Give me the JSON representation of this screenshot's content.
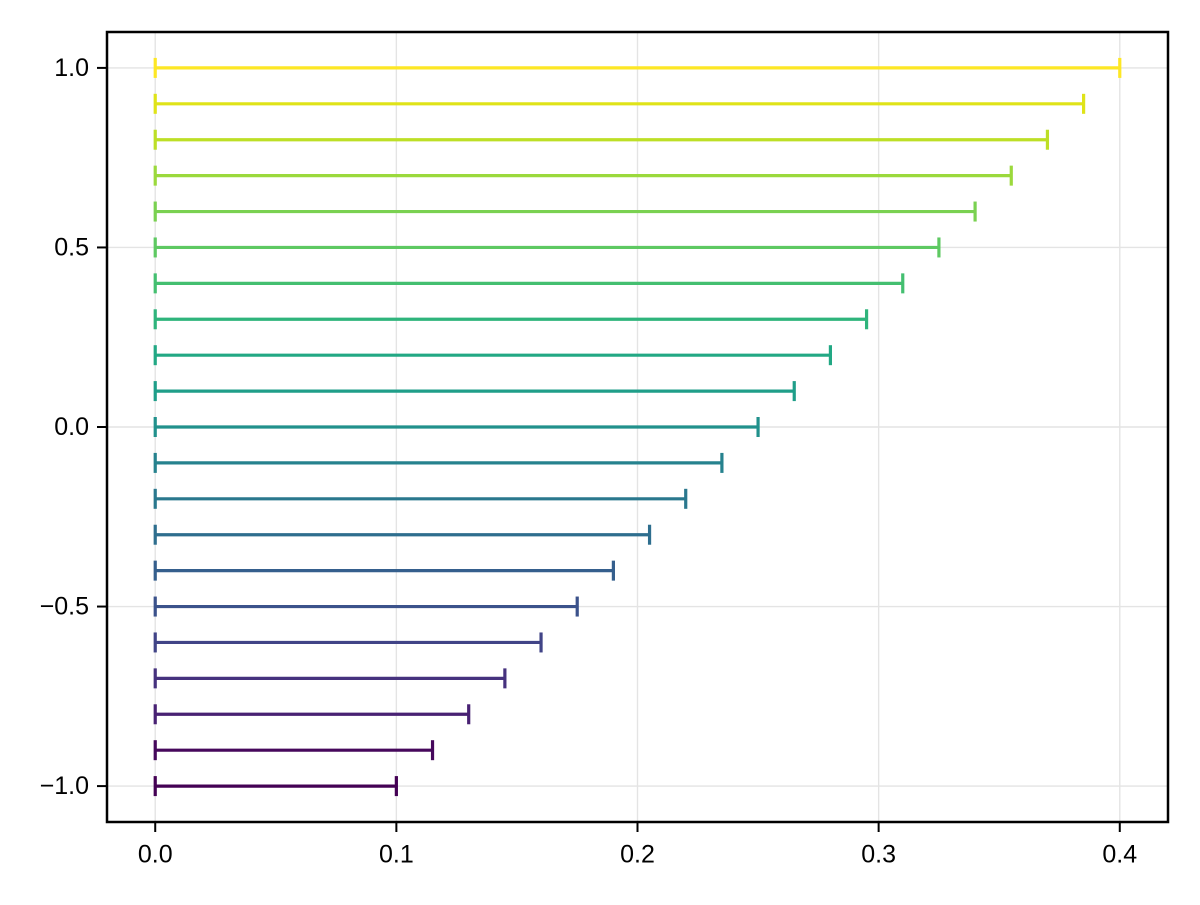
{
  "figure": {
    "background": "#ffffff"
  },
  "chart_data": {
    "type": "bar",
    "subtype": "horizontal_errorbar_lines",
    "title": "",
    "xlabel": "",
    "ylabel": "",
    "legend": "none",
    "grid": true,
    "colormap": "viridis",
    "x_start": 0.0,
    "y_positions": [
      1.0,
      0.9,
      0.8,
      0.7,
      0.6,
      0.5,
      0.4,
      0.3,
      0.2,
      0.1,
      0.0,
      -0.1,
      -0.2,
      -0.3,
      -0.4,
      -0.5,
      -0.6,
      -0.7,
      -0.8,
      -0.9,
      -1.0
    ],
    "x_end": [
      0.4,
      0.385,
      0.37,
      0.355,
      0.34,
      0.325,
      0.31,
      0.295,
      0.28,
      0.265,
      0.25,
      0.235,
      0.22,
      0.205,
      0.19,
      0.175,
      0.16,
      0.145,
      0.13,
      0.115,
      0.1
    ],
    "line_colors": [
      "#fde725",
      "#dfe318",
      "#bddf26",
      "#9bd93c",
      "#7ad151",
      "#5ec962",
      "#44bf70",
      "#2fb47c",
      "#22a884",
      "#1f9e89",
      "#21918c",
      "#26828e",
      "#2a788e",
      "#2e6e8e",
      "#355f8d",
      "#3b528b",
      "#414487",
      "#46327e",
      "#482173",
      "#46085c",
      "#440154"
    ],
    "xlim": [
      -0.02,
      0.42
    ],
    "ylim": [
      -1.1,
      1.1
    ],
    "xticks": {
      "values": [
        0.0,
        0.1,
        0.2,
        0.3,
        0.4
      ],
      "labels": [
        "0.0",
        "0.1",
        "0.2",
        "0.3",
        "0.4"
      ]
    },
    "yticks": {
      "values": [
        1.0,
        0.5,
        0.0,
        -0.5,
        -1.0
      ],
      "labels": [
        "1.0",
        "0.5",
        "0.0",
        "−0.5",
        "−1.0"
      ]
    },
    "colors": {
      "grid": "#e4e4e4",
      "spine": "#000000",
      "tick": "#000000",
      "tick_label": "#000000",
      "plot_background": "#ffffff"
    }
  }
}
